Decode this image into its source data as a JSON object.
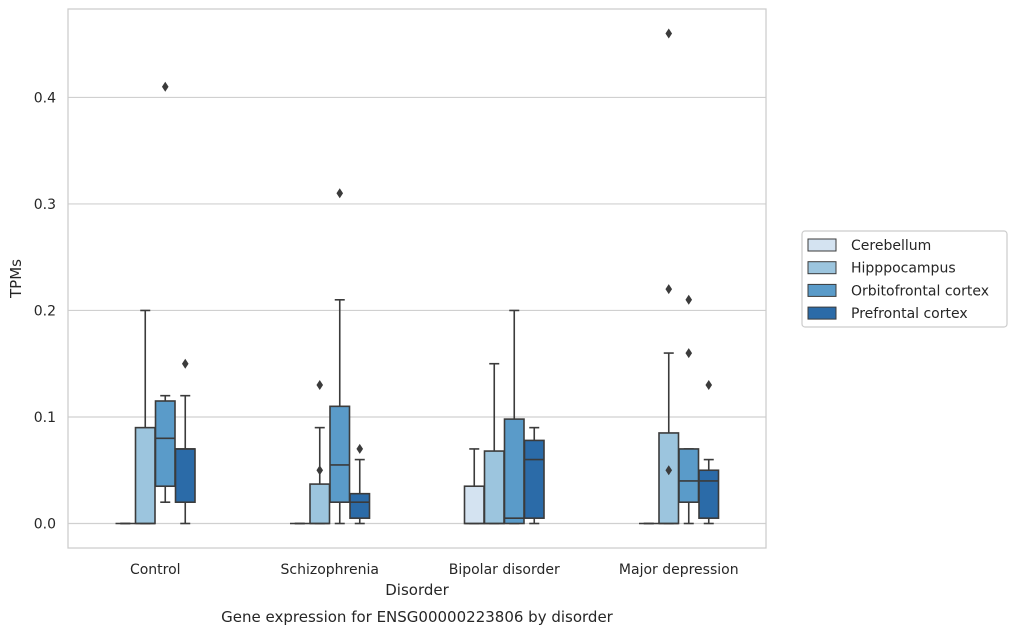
{
  "chart_data": {
    "type": "box",
    "title": "",
    "caption": "Gene expression for ENSG00000223806 by disorder",
    "xlabel": "Disorder",
    "ylabel": "TPMs",
    "ylim": [
      -0.023,
      0.483
    ],
    "yticks": [
      0.0,
      0.1,
      0.2,
      0.3,
      0.4
    ],
    "ytick_labels": [
      "0.0",
      "0.1",
      "0.2",
      "0.3",
      "0.4"
    ],
    "grid": "horizontal",
    "legend_position": "right",
    "categories": [
      "Control",
      "Schizophrenia",
      "Bipolar disorder",
      "Major depression"
    ],
    "series": [
      {
        "name": "Cerebellum",
        "color": "#d4e3f1",
        "boxes": [
          {
            "whisker_low": 0.0,
            "q1": 0.0,
            "median": 0.0,
            "q3": 0.0,
            "whisker_high": 0.0,
            "outliers": []
          },
          {
            "whisker_low": 0.0,
            "q1": 0.0,
            "median": 0.0,
            "q3": 0.0,
            "whisker_high": 0.0,
            "outliers": []
          },
          {
            "whisker_low": 0.0,
            "q1": 0.0,
            "median": 0.0,
            "q3": 0.035,
            "whisker_high": 0.07,
            "outliers": []
          },
          {
            "whisker_low": 0.0,
            "q1": 0.0,
            "median": 0.0,
            "q3": 0.0,
            "whisker_high": 0.0,
            "outliers": []
          }
        ]
      },
      {
        "name": "Hipppocampus",
        "color": "#9cc5de",
        "boxes": [
          {
            "whisker_low": 0.0,
            "q1": 0.0,
            "median": 0.0,
            "q3": 0.09,
            "whisker_high": 0.2,
            "outliers": []
          },
          {
            "whisker_low": 0.0,
            "q1": 0.0,
            "median": 0.0,
            "q3": 0.037,
            "whisker_high": 0.09,
            "outliers": [
              0.05,
              0.13
            ]
          },
          {
            "whisker_low": 0.0,
            "q1": 0.0,
            "median": 0.0,
            "q3": 0.068,
            "whisker_high": 0.15,
            "outliers": []
          },
          {
            "whisker_low": 0.0,
            "q1": 0.0,
            "median": 0.0,
            "q3": 0.085,
            "whisker_high": 0.16,
            "outliers": [
              0.05,
              0.22,
              0.46
            ]
          }
        ]
      },
      {
        "name": "Orbitofrontal cortex",
        "color": "#5a9bc9",
        "boxes": [
          {
            "whisker_low": 0.02,
            "q1": 0.035,
            "median": 0.08,
            "q3": 0.115,
            "whisker_high": 0.12,
            "outliers": [
              0.41
            ]
          },
          {
            "whisker_low": 0.0,
            "q1": 0.02,
            "median": 0.055,
            "q3": 0.11,
            "whisker_high": 0.21,
            "outliers": [
              0.31
            ]
          },
          {
            "whisker_low": 0.0,
            "q1": 0.0,
            "median": 0.005,
            "q3": 0.098,
            "whisker_high": 0.2,
            "outliers": []
          },
          {
            "whisker_low": 0.0,
            "q1": 0.02,
            "median": 0.04,
            "q3": 0.07,
            "whisker_high": 0.07,
            "outliers": [
              0.16,
              0.21
            ]
          }
        ]
      },
      {
        "name": "Prefrontal cortex",
        "color": "#2b6ba8",
        "boxes": [
          {
            "whisker_low": 0.0,
            "q1": 0.02,
            "median": 0.07,
            "q3": 0.07,
            "whisker_high": 0.12,
            "outliers": [
              0.15
            ]
          },
          {
            "whisker_low": 0.0,
            "q1": 0.005,
            "median": 0.02,
            "q3": 0.028,
            "whisker_high": 0.06,
            "outliers": [
              0.07
            ]
          },
          {
            "whisker_low": 0.0,
            "q1": 0.005,
            "median": 0.06,
            "q3": 0.078,
            "whisker_high": 0.09,
            "outliers": []
          },
          {
            "whisker_low": 0.0,
            "q1": 0.005,
            "median": 0.04,
            "q3": 0.05,
            "whisker_high": 0.06,
            "outliers": [
              0.13
            ]
          }
        ]
      }
    ]
  }
}
